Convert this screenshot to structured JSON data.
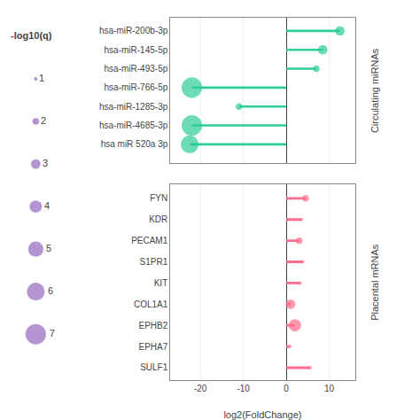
{
  "chart_data": [
    {
      "type": "lollipop",
      "title": "Circulating miRNAs",
      "categories": [
        "hsa-miR-200b-3p",
        "hsa-miR-145-5p",
        "hsa-miR-493-5p",
        "hsa-miR-766-5p",
        "hsa-miR-1285-3p",
        "hsa-miR-4685-3p",
        "hsa miR 520a 3p"
      ],
      "values": [
        12.5,
        8.5,
        7.0,
        -22,
        -11,
        -22,
        -22.5
      ],
      "sizes": [
        3,
        3,
        2,
        7,
        2,
        7,
        6
      ],
      "color": "#2ECC9A",
      "xlim": [
        -27,
        16
      ],
      "xticks": [
        -20,
        -10,
        0,
        10
      ],
      "grid": "x",
      "tick_labels": "y",
      "size_legend": {
        "title": "-log10(q)",
        "values": [
          1,
          2,
          3,
          4,
          5,
          6,
          7
        ]
      }
    },
    {
      "type": "lollipop",
      "title": "Placental mRNAs",
      "xlabel": "log2(FoldChange)",
      "categories": [
        "FYN",
        "KDR",
        "PECAM1",
        "S1PR1",
        "KIT",
        "COL1A1",
        "EPHB2",
        "EPHA7",
        "SULF1"
      ],
      "values": [
        4.5,
        3.5,
        3.0,
        3.8,
        3.2,
        1.0,
        2.0,
        0.8,
        5.5
      ],
      "sizes": [
        2,
        1,
        2,
        1,
        1,
        3,
        4,
        1,
        1
      ],
      "color": "#FF6B8A",
      "xlim": [
        -27,
        16
      ],
      "xticks": [
        -20,
        -10,
        0,
        10
      ],
      "grid": "x"
    }
  ]
}
